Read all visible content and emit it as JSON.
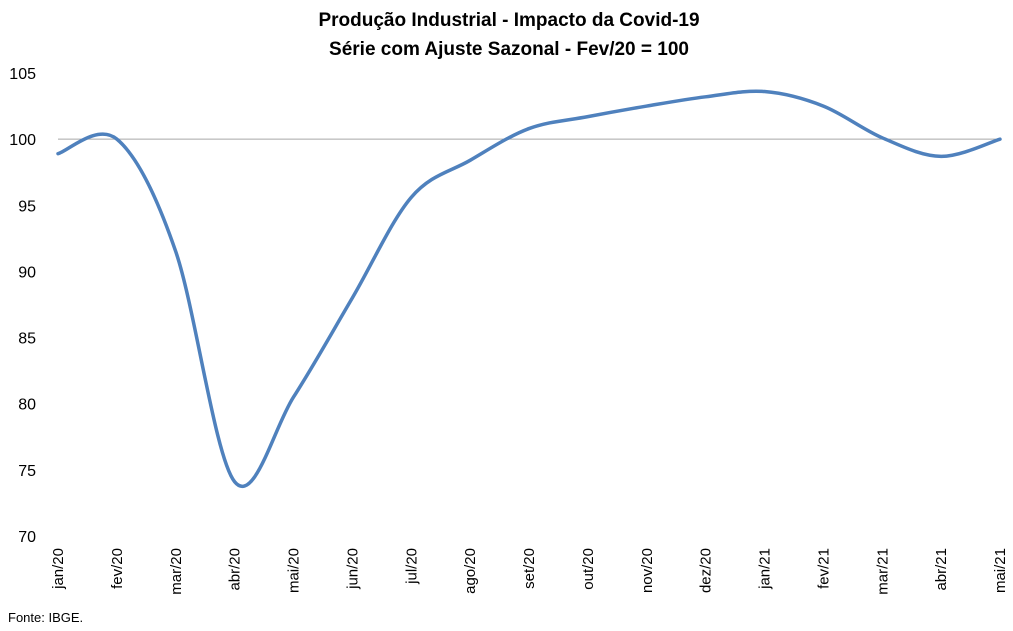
{
  "chart_data": {
    "type": "line",
    "title": "Produção Industrial - Impacto da Covid-19",
    "subtitle": "Série com Ajuste Sazonal - Fev/20 = 100",
    "categories": [
      "jan/20",
      "fev/20",
      "mar/20",
      "abr/20",
      "mai/20",
      "jun/20",
      "jul/20",
      "ago/20",
      "set/20",
      "out/20",
      "nov/20",
      "dez/20",
      "jan/21",
      "fev/21",
      "mar/21",
      "abr/21",
      "mai/21"
    ],
    "series": [
      {
        "values": [
          98.9,
          100.0,
          91.5,
          74.1,
          80.5,
          88.0,
          95.6,
          98.4,
          100.8,
          101.7,
          102.5,
          103.2,
          103.6,
          102.5,
          100.1,
          98.7,
          100.0
        ],
        "color": "#4f81bd"
      }
    ],
    "reference_line": {
      "value": 100,
      "color": "#a6a6a6"
    },
    "ylim": [
      70,
      105
    ],
    "yticks": [
      70,
      75,
      80,
      85,
      90,
      95,
      100,
      105
    ],
    "grid": false,
    "legend": "none"
  },
  "footer": {
    "source": "Fonte: IBGE."
  }
}
